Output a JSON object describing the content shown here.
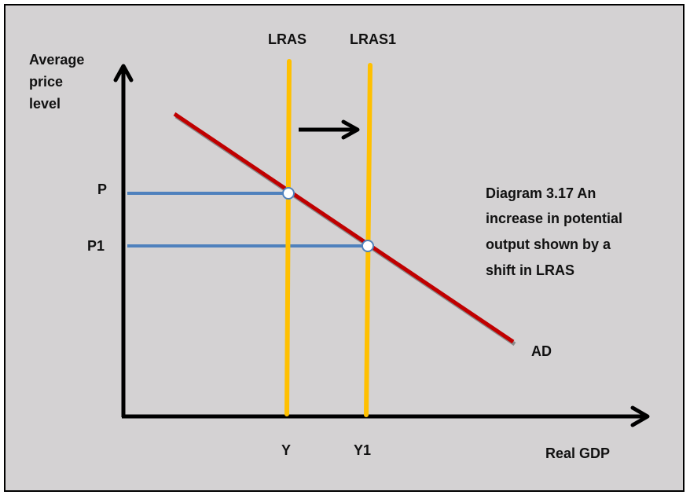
{
  "title": "Diagram 3.17 An increase in potential output shown by a shift in LRAS",
  "caption_lines": [
    "Diagram 3.17 An",
    "increase in potential",
    "output shown by a",
    "shift in LRAS"
  ],
  "y_axis_label_lines": [
    "Average",
    "price",
    "level"
  ],
  "x_axis_label": "Real GDP",
  "curves": {
    "lras": "LRAS",
    "lras1": "LRAS1",
    "ad": "AD"
  },
  "price_labels": {
    "p": "P",
    "p1": "P1"
  },
  "output_labels": {
    "y": "Y",
    "y1": "Y1"
  },
  "colors": {
    "background": "#d4d2d3",
    "ad": "#c00000",
    "lras": "#ffc000",
    "guides": "#4f81bd",
    "axes": "#000000"
  }
}
